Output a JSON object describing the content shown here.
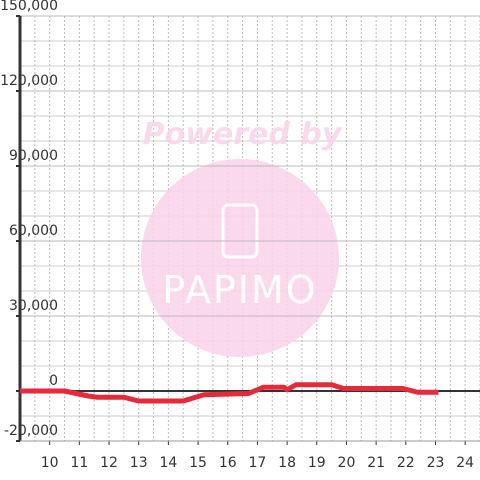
{
  "chart_data": {
    "type": "line",
    "x": [
      9,
      10.5,
      11.3,
      11.6,
      12.5,
      13,
      14.5,
      15.2,
      16.7,
      17.2,
      17.9,
      18,
      18.3,
      19.5,
      19.9,
      21.9,
      22.4,
      23.1
    ],
    "series": [
      {
        "color": "#e8293a",
        "values": [
          0,
          0,
          -2000,
          -2500,
          -2500,
          -4000,
          -4000,
          -1500,
          -1000,
          1500,
          1500,
          500,
          2500,
          2500,
          1000,
          1000,
          -500,
          -500
        ]
      }
    ],
    "xlim": [
      9,
      24.5
    ],
    "xticks": [
      10,
      11,
      12,
      13,
      14,
      15,
      16,
      17,
      18,
      19,
      20,
      21,
      22,
      23,
      24
    ],
    "ylim": [
      -20000,
      150000
    ],
    "yticks": [
      {
        "value": -20000,
        "label": "-20,000"
      },
      0,
      {
        "value": 30000,
        "label": "30,000"
      },
      {
        "value": 60000,
        "label": "60,000"
      },
      {
        "value": 90000,
        "label": "90,000"
      },
      {
        "value": 120000,
        "label": "120,000"
      },
      {
        "value": 150000,
        "label": "150,000"
      }
    ],
    "grid": true,
    "watermark": [
      "Powered by",
      "PAPIMO"
    ]
  }
}
